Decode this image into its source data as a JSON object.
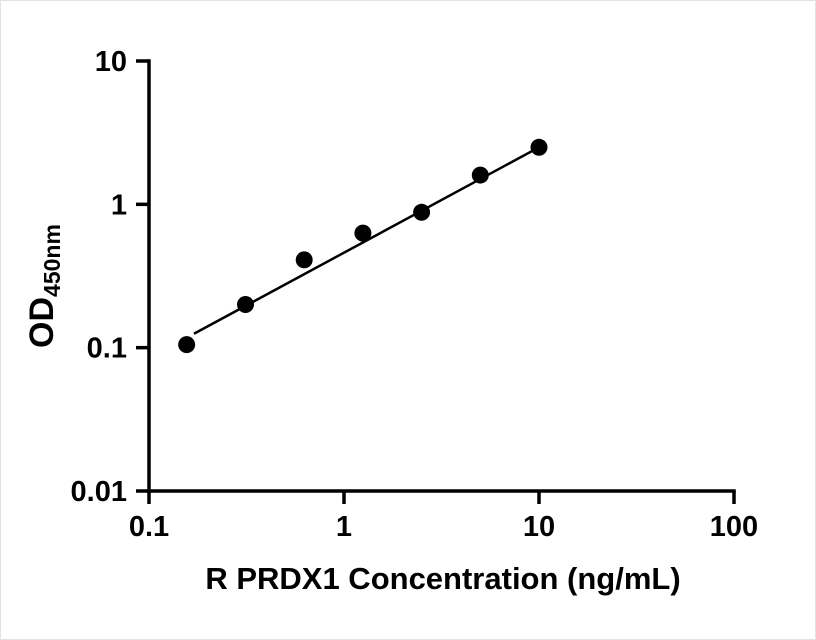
{
  "chart_data": {
    "type": "scatter",
    "title": "",
    "xlabel": "R PRDX1 Concentration (ng/mL)",
    "ylabel_main": "OD",
    "ylabel_sub": "450nm",
    "x_scale": "log",
    "y_scale": "log",
    "xlim": [
      0.1,
      100
    ],
    "ylim": [
      0.01,
      10
    ],
    "x_ticks": [
      0.1,
      1,
      10,
      100
    ],
    "x_tick_labels": [
      "0.1",
      "1",
      "10",
      "100"
    ],
    "y_ticks": [
      0.01,
      0.1,
      1,
      10
    ],
    "y_tick_labels": [
      "0.01",
      "0.1",
      "1",
      "10"
    ],
    "grid": false,
    "legend": false,
    "x": [
      0.156,
      0.3125,
      0.625,
      1.25,
      2.5,
      5,
      10
    ],
    "y": [
      0.105,
      0.2,
      0.41,
      0.63,
      0.88,
      1.6,
      2.5
    ],
    "trend_line": {
      "x1": 0.17,
      "y1": 0.125,
      "x2": 10,
      "y2": 2.5
    },
    "marker_color": "#000000",
    "line_color": "#000000",
    "axis_color": "#000000",
    "background_color": "#ffffff"
  }
}
